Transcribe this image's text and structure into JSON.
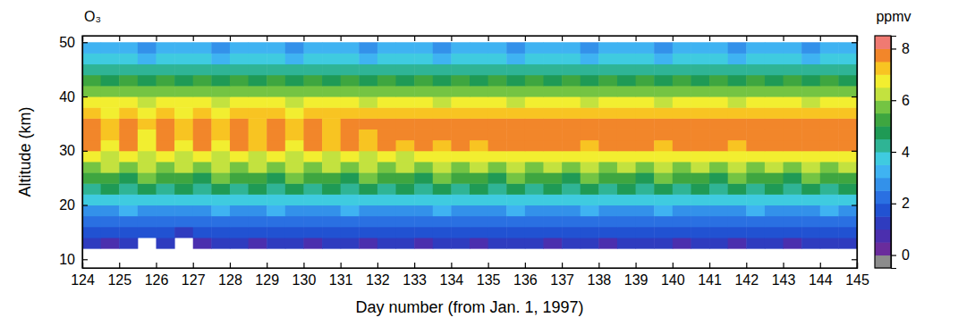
{
  "chart_data": {
    "type": "heatmap",
    "title": "O₃",
    "x_label": "Day number (from Jan. 1, 1997)",
    "y_label": "Altitude (km)",
    "colorbar_label": "ppmv",
    "x": [
      124,
      124.5,
      125,
      125.5,
      126,
      126.5,
      127,
      127.5,
      128,
      128.5,
      129,
      129.5,
      130,
      130.5,
      131,
      131.5,
      132,
      132.5,
      133,
      133.5,
      134,
      134.5,
      135,
      135.5,
      136,
      136.5,
      137,
      137.5,
      138,
      138.5,
      139,
      139.5,
      140,
      140.5,
      141,
      141.5,
      142,
      142.5,
      143,
      143.5,
      144,
      144.5,
      145
    ],
    "y": [
      12,
      14,
      16,
      18,
      20,
      22,
      24,
      26,
      28,
      30,
      32,
      34,
      36,
      38,
      40,
      42,
      44,
      46,
      48,
      50
    ],
    "values": [
      [
        1.0,
        0.9,
        1.1,
        null,
        1.0,
        null,
        0.9,
        1.1,
        1.0,
        0.9,
        1.1,
        1.0,
        0.9,
        1.0,
        1.1,
        0.9,
        1.0,
        1.0,
        0.9,
        1.1,
        1.0,
        0.9,
        1.0,
        1.1,
        1.0,
        0.9,
        1.0,
        1.1,
        0.9,
        1.0,
        1.0,
        1.1,
        0.9,
        1.0,
        1.0,
        0.9,
        1.1,
        1.0,
        0.9,
        1.0,
        1.1,
        1.0
      ],
      [
        1.6,
        1.5,
        1.7,
        1.5,
        1.6,
        1.4,
        1.5,
        1.7,
        1.6,
        1.5,
        1.7,
        1.6,
        1.5,
        1.6,
        1.7,
        1.5,
        1.6,
        1.6,
        1.5,
        1.7,
        1.6,
        1.5,
        1.6,
        1.7,
        1.6,
        1.5,
        1.6,
        1.7,
        1.5,
        1.6,
        1.6,
        1.7,
        1.5,
        1.6,
        1.6,
        1.5,
        1.7,
        1.6,
        1.5,
        1.6,
        1.7,
        1.6
      ],
      [
        2.2,
        2.1,
        2.3,
        2.0,
        2.2,
        2.1,
        2.1,
        2.3,
        2.2,
        2.1,
        2.3,
        2.2,
        2.1,
        2.2,
        2.3,
        2.1,
        2.2,
        2.2,
        2.1,
        2.3,
        2.2,
        2.1,
        2.2,
        2.3,
        2.2,
        2.1,
        2.2,
        2.3,
        2.1,
        2.2,
        2.2,
        2.3,
        2.1,
        2.2,
        2.2,
        2.1,
        2.3,
        2.2,
        2.1,
        2.2,
        2.3,
        2.2
      ],
      [
        2.9,
        2.8,
        3.0,
        2.8,
        2.9,
        2.8,
        2.8,
        3.0,
        2.9,
        2.8,
        3.0,
        2.9,
        2.8,
        2.9,
        3.0,
        2.8,
        2.9,
        2.9,
        2.8,
        3.0,
        2.9,
        2.8,
        2.9,
        3.0,
        2.9,
        2.8,
        2.9,
        3.0,
        2.8,
        2.9,
        2.9,
        3.0,
        2.8,
        2.9,
        2.9,
        2.8,
        3.0,
        2.9,
        2.8,
        2.9,
        3.0,
        2.9
      ],
      [
        3.6,
        3.8,
        3.7,
        3.9,
        3.6,
        3.8,
        3.7,
        3.9,
        3.6,
        3.8,
        3.7,
        3.9,
        3.6,
        3.8,
        3.7,
        3.9,
        3.6,
        3.8,
        3.7,
        3.8,
        3.6,
        3.9,
        3.7,
        3.8,
        3.6,
        3.9,
        3.7,
        3.8,
        3.6,
        3.9,
        3.7,
        3.8,
        3.6,
        3.9,
        3.7,
        3.8,
        3.6,
        3.9,
        3.7,
        3.8,
        3.6,
        3.8
      ],
      [
        4.4,
        4.7,
        4.3,
        4.8,
        4.4,
        4.7,
        4.3,
        4.8,
        4.4,
        4.7,
        4.3,
        4.8,
        4.4,
        4.7,
        4.3,
        4.8,
        4.4,
        4.7,
        4.3,
        4.8,
        4.4,
        4.7,
        4.3,
        4.8,
        4.4,
        4.7,
        4.3,
        4.8,
        4.4,
        4.7,
        4.3,
        4.8,
        4.4,
        4.7,
        4.3,
        4.8,
        4.4,
        4.7,
        4.3,
        4.8,
        4.4,
        4.7
      ],
      [
        5.0,
        5.4,
        4.9,
        5.5,
        5.0,
        5.4,
        4.9,
        5.5,
        5.0,
        5.4,
        4.9,
        5.5,
        5.0,
        5.4,
        4.9,
        5.5,
        5.0,
        5.4,
        4.9,
        5.5,
        5.0,
        5.4,
        4.9,
        5.5,
        5.0,
        5.4,
        4.9,
        5.5,
        5.0,
        5.4,
        4.9,
        5.5,
        5.0,
        5.4,
        4.9,
        5.5,
        5.0,
        5.4,
        4.9,
        5.5,
        5.0,
        5.4
      ],
      [
        5.8,
        6.3,
        5.7,
        6.4,
        5.8,
        6.3,
        5.7,
        6.4,
        5.8,
        6.3,
        5.7,
        6.4,
        5.8,
        6.3,
        5.7,
        6.4,
        5.8,
        6.3,
        5.7,
        6.4,
        5.8,
        6.3,
        5.7,
        6.4,
        5.8,
        6.3,
        5.7,
        6.4,
        5.8,
        6.3,
        5.7,
        6.4,
        5.8,
        6.3,
        5.7,
        6.4,
        5.8,
        6.3,
        5.7,
        6.4,
        5.8,
        6.3
      ],
      [
        6.8,
        6.4,
        6.9,
        6.3,
        6.8,
        6.4,
        6.9,
        6.3,
        6.8,
        6.4,
        6.9,
        6.3,
        6.8,
        6.4,
        6.9,
        6.3,
        6.8,
        6.4,
        6.9,
        6.5,
        6.8,
        6.6,
        6.9,
        6.5,
        6.8,
        6.6,
        6.9,
        6.5,
        6.8,
        6.6,
        6.9,
        6.5,
        6.8,
        6.6,
        6.9,
        6.5,
        6.8,
        6.6,
        6.9,
        6.5,
        6.8,
        6.6
      ],
      [
        7.6,
        6.9,
        7.7,
        6.8,
        7.6,
        6.9,
        7.7,
        6.8,
        7.6,
        7.0,
        7.7,
        6.9,
        7.6,
        7.0,
        7.7,
        7.1,
        7.6,
        7.2,
        7.7,
        7.3,
        7.6,
        7.4,
        7.7,
        7.5,
        7.6,
        7.5,
        7.7,
        7.4,
        7.6,
        7.5,
        7.7,
        7.4,
        7.6,
        7.5,
        7.7,
        7.4,
        7.6,
        7.5,
        7.7,
        7.5,
        7.6,
        7.5
      ],
      [
        7.8,
        7.0,
        7.9,
        6.9,
        7.8,
        7.1,
        7.9,
        7.0,
        7.8,
        7.2,
        7.9,
        7.1,
        7.8,
        7.3,
        7.9,
        7.4,
        7.8,
        7.5,
        7.9,
        7.5,
        7.8,
        7.6,
        7.9,
        7.6,
        7.8,
        7.7,
        7.9,
        7.6,
        7.8,
        7.7,
        7.9,
        7.6,
        7.8,
        7.7,
        7.9,
        7.6,
        7.8,
        7.7,
        7.9,
        7.7,
        7.8,
        7.7
      ],
      [
        7.7,
        7.1,
        7.8,
        7.0,
        7.7,
        7.2,
        7.8,
        7.1,
        7.7,
        7.3,
        7.8,
        7.2,
        7.7,
        7.4,
        7.8,
        7.5,
        7.7,
        7.6,
        7.8,
        7.6,
        7.7,
        7.7,
        7.8,
        7.6,
        7.7,
        7.7,
        7.8,
        7.6,
        7.7,
        7.7,
        7.8,
        7.6,
        7.7,
        7.7,
        7.8,
        7.6,
        7.7,
        7.7,
        7.8,
        7.7,
        7.7,
        7.7
      ],
      [
        7.2,
        6.9,
        7.3,
        6.8,
        7.2,
        6.9,
        7.3,
        6.9,
        7.2,
        7.0,
        7.3,
        6.9,
        7.2,
        7.0,
        7.3,
        7.1,
        7.2,
        7.1,
        7.3,
        7.1,
        7.2,
        7.2,
        7.3,
        7.1,
        7.2,
        7.2,
        7.3,
        7.1,
        7.2,
        7.2,
        7.3,
        7.1,
        7.2,
        7.2,
        7.3,
        7.1,
        7.2,
        7.2,
        7.3,
        7.2,
        7.2,
        7.2
      ],
      [
        6.6,
        6.5,
        6.7,
        6.4,
        6.6,
        6.5,
        6.7,
        6.4,
        6.6,
        6.5,
        6.7,
        6.4,
        6.6,
        6.5,
        6.7,
        6.4,
        6.6,
        6.5,
        6.7,
        6.4,
        6.6,
        6.5,
        6.7,
        6.4,
        6.6,
        6.5,
        6.7,
        6.4,
        6.6,
        6.5,
        6.7,
        6.4,
        6.6,
        6.5,
        6.7,
        6.4,
        6.6,
        6.5,
        6.7,
        6.4,
        6.6,
        6.5
      ],
      [
        5.8,
        5.7,
        5.9,
        5.6,
        5.8,
        5.7,
        5.9,
        5.6,
        5.8,
        5.7,
        5.9,
        5.6,
        5.8,
        5.7,
        5.9,
        5.6,
        5.8,
        5.7,
        5.9,
        5.6,
        5.8,
        5.7,
        5.9,
        5.6,
        5.8,
        5.7,
        5.9,
        5.6,
        5.8,
        5.7,
        5.9,
        5.6,
        5.8,
        5.7,
        5.9,
        5.6,
        5.8,
        5.7,
        5.9,
        5.6,
        5.8,
        5.7
      ],
      [
        5.0,
        4.9,
        5.1,
        4.8,
        5.0,
        4.9,
        5.1,
        4.8,
        5.0,
        4.9,
        5.1,
        4.8,
        5.0,
        4.9,
        5.1,
        4.8,
        5.0,
        4.9,
        5.1,
        4.8,
        5.0,
        4.9,
        5.1,
        4.8,
        5.0,
        4.9,
        5.1,
        4.8,
        5.0,
        4.9,
        5.1,
        4.8,
        5.0,
        4.9,
        5.1,
        4.8,
        5.0,
        4.9,
        5.1,
        4.8,
        5.0,
        4.9
      ],
      [
        4.3,
        4.2,
        4.4,
        4.1,
        4.3,
        4.2,
        4.4,
        4.1,
        4.3,
        4.2,
        4.4,
        4.1,
        4.3,
        4.2,
        4.4,
        4.1,
        4.3,
        4.2,
        4.4,
        4.1,
        4.3,
        4.2,
        4.4,
        4.1,
        4.3,
        4.2,
        4.4,
        4.1,
        4.3,
        4.2,
        4.4,
        4.1,
        4.3,
        4.2,
        4.4,
        4.1,
        4.3,
        4.2,
        4.4,
        4.1,
        4.3,
        4.2
      ],
      [
        3.6,
        3.5,
        3.7,
        3.4,
        3.6,
        3.5,
        3.7,
        3.4,
        3.6,
        3.5,
        3.7,
        3.4,
        3.6,
        3.5,
        3.7,
        3.4,
        3.6,
        3.5,
        3.7,
        3.4,
        3.6,
        3.5,
        3.7,
        3.4,
        3.6,
        3.5,
        3.7,
        3.4,
        3.6,
        3.5,
        3.7,
        3.4,
        3.6,
        3.5,
        3.7,
        3.4,
        3.6,
        3.5,
        3.7,
        3.4,
        3.6,
        3.5
      ],
      [
        3.1,
        3.0,
        3.2,
        2.9,
        3.1,
        3.0,
        3.2,
        2.9,
        3.1,
        3.0,
        3.2,
        2.9,
        3.1,
        3.0,
        3.2,
        2.9,
        3.1,
        3.0,
        3.2,
        2.9,
        3.1,
        3.0,
        3.2,
        2.9,
        3.1,
        3.0,
        3.2,
        2.9,
        3.1,
        3.0,
        3.2,
        2.9,
        3.1,
        3.0,
        3.2,
        2.9,
        3.1,
        3.0,
        3.2,
        2.9,
        3.1,
        3.0
      ]
    ],
    "xlim": [
      124,
      145
    ],
    "ylim": [
      8.4,
      51.2
    ],
    "xticks": [
      124,
      125,
      126,
      127,
      128,
      129,
      130,
      131,
      132,
      133,
      134,
      135,
      136,
      137,
      138,
      139,
      140,
      141,
      142,
      143,
      144,
      145
    ],
    "yticks": [
      10,
      20,
      30,
      40,
      50
    ],
    "zlim": [
      -0.5,
      8.5
    ],
    "zticks": [
      0,
      2,
      4,
      6,
      8
    ]
  }
}
